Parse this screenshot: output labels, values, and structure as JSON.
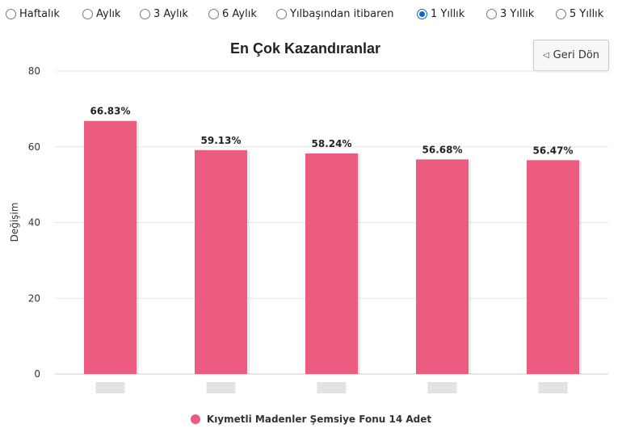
{
  "periods": [
    {
      "label": "Haftalık",
      "checked": false
    },
    {
      "label": "Aylık",
      "checked": false
    },
    {
      "label": "3 Aylık",
      "checked": false
    },
    {
      "label": "6 Aylık",
      "checked": false
    },
    {
      "label": "Yılbaşından itibaren",
      "checked": false
    },
    {
      "label": "1 Yıllık",
      "checked": true
    },
    {
      "label": "3 Yıllık",
      "checked": false
    },
    {
      "label": "5 Yıllık",
      "checked": false
    }
  ],
  "back_button": {
    "label": "Geri Dön",
    "icon": "triangle-left-icon"
  },
  "colors": {
    "bar": "#ec5b80",
    "grid": "#e6e6e6",
    "axis": "#cccccc"
  },
  "chart_data": {
    "type": "bar",
    "title": "En Çok Kazandıranlar",
    "xlabel": "",
    "ylabel": "Değişim",
    "ylim": [
      0,
      80
    ],
    "yticks": [
      0,
      20,
      40,
      60,
      80
    ],
    "grid": true,
    "legend_position": "bottom",
    "categories": [
      "",
      "",
      "",
      "",
      ""
    ],
    "series": [
      {
        "name": "Kıymetli Madenler Şemsiye Fonu 14 Adet",
        "values": [
          66.83,
          59.13,
          58.24,
          56.68,
          56.47
        ],
        "labels": [
          "66.83%",
          "59.13%",
          "58.24%",
          "56.68%",
          "56.47%"
        ]
      }
    ]
  }
}
